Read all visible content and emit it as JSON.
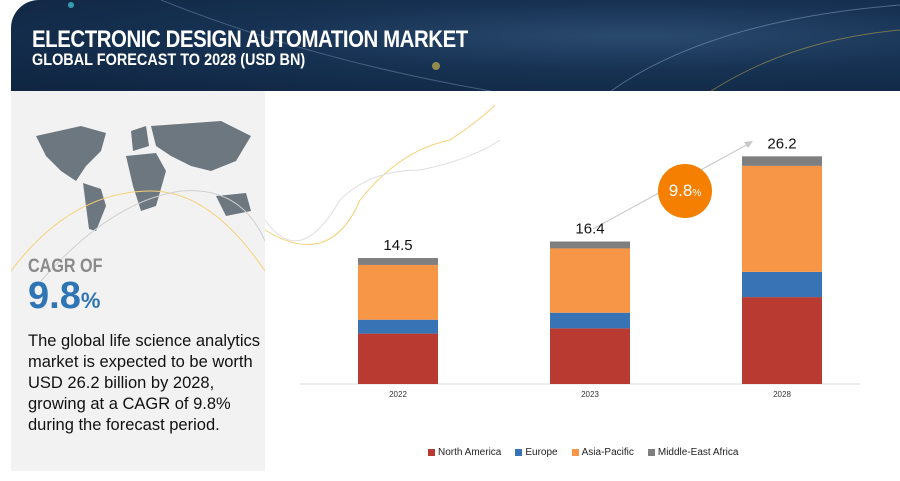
{
  "header": {
    "title": "ELECTRONIC DESIGN AUTOMATION MARKET",
    "subtitle": "GLOBAL FORECAST TO 2028 (USD BN)"
  },
  "sidebar": {
    "cagr_label": "CAGR OF",
    "cagr_value": "9.8",
    "cagr_unit": "%",
    "description": "The global life science analytics market is expected to be worth USD 26.2 billion by 2028, growing at a CAGR of 9.8% during the forecast period."
  },
  "badge": {
    "value": "9.8",
    "unit": "%"
  },
  "colors": {
    "header": "#163152",
    "north_america": "#b83a31",
    "europe": "#3873b5",
    "asia_pacific": "#f79646",
    "mea": "#7f7f7f",
    "accent": "#f57f00"
  },
  "chart_data": {
    "type": "bar",
    "stacked": true,
    "categories": [
      "2022",
      "2023",
      "2028"
    ],
    "series": [
      {
        "name": "North America",
        "values": [
          5.8,
          6.4,
          10.0
        ]
      },
      {
        "name": "Europe",
        "values": [
          1.6,
          1.8,
          2.9
        ]
      },
      {
        "name": "Asia-Pacific",
        "values": [
          6.3,
          7.4,
          12.2
        ]
      },
      {
        "name": "Middle-East Africa",
        "values": [
          0.8,
          0.8,
          1.1
        ]
      }
    ],
    "totals": [
      "14.5",
      "16.4",
      "26.2"
    ],
    "title": "",
    "xlabel": "",
    "ylabel": "",
    "ylim": [
      0,
      28
    ],
    "grid": false,
    "legend": "bottom"
  }
}
